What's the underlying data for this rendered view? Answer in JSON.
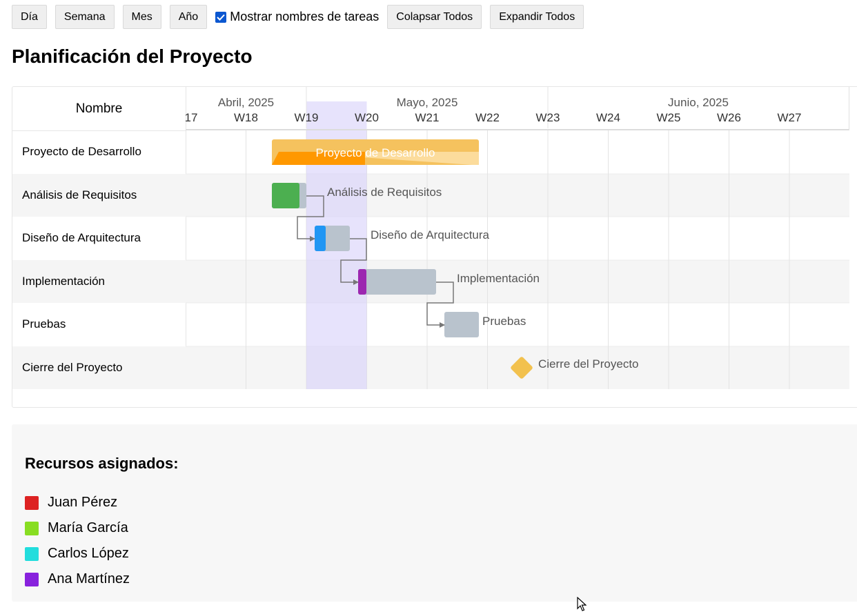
{
  "toolbar": {
    "day": "Día",
    "week": "Semana",
    "month": "Mes",
    "year": "Año",
    "show_names_label": "Mostrar nombres de tareas",
    "show_names_checked": true,
    "collapse_all": "Colapsar Todos",
    "expand_all": "Expandir Todos"
  },
  "title": "Planificación del Proyecto",
  "gantt": {
    "name_column_header": "Nombre",
    "months": [
      "Abril, 2025",
      "Mayo, 2025",
      "Junio, 2025"
    ],
    "weeks": [
      "17",
      "W18",
      "W19",
      "W20",
      "W21",
      "W22",
      "W23",
      "W24",
      "W25",
      "W26",
      "W27"
    ],
    "current_week": "W19",
    "tasks": [
      {
        "name": "Proyecto de Desarrollo",
        "type": "project",
        "progress": 0.45,
        "color": "#f5c25e",
        "progress_color": "#ff9800"
      },
      {
        "name": "Análisis de Requisitos",
        "type": "task",
        "progress": 0.8,
        "color": "#b9c3cd",
        "progress_color": "#4caf50"
      },
      {
        "name": "Diseño de Arquitectura",
        "type": "task",
        "progress": 0.3,
        "color": "#b9c3cd",
        "progress_color": "#2196f3"
      },
      {
        "name": "Implementación",
        "type": "task",
        "progress": 0.1,
        "color": "#b9c3cd",
        "progress_color": "#9c27b0"
      },
      {
        "name": "Pruebas",
        "type": "task",
        "progress": 0,
        "color": "#b9c3cd",
        "progress_color": "#b9c3cd"
      },
      {
        "name": "Cierre del Proyecto",
        "type": "milestone",
        "color": "#f2c14e"
      }
    ]
  },
  "resources": {
    "title": "Recursos asignados:",
    "items": [
      {
        "name": "Juan Pérez",
        "color": "#dd2222"
      },
      {
        "name": "María García",
        "color": "#88dd22"
      },
      {
        "name": "Carlos López",
        "color": "#22dddd"
      },
      {
        "name": "Ana Martínez",
        "color": "#8822dd"
      }
    ]
  }
}
